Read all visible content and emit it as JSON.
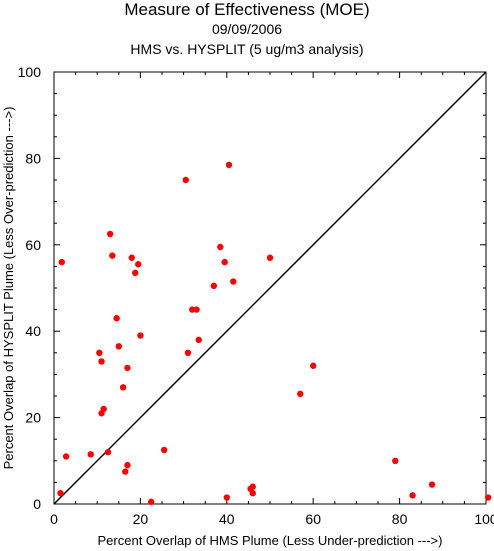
{
  "chart_data": {
    "type": "scatter",
    "title": "Measure of Effectiveness (MOE)",
    "subtitle_date": "09/09/2006",
    "subtitle": "HMS vs. HYSPLIT  (5 ug/m3 analysis)",
    "xlabel": "Percent Overlap of HMS Plume (Less Under-prediction --->)",
    "ylabel": "Percent Overlap of HYSPLIT Plume (Less Over-prediction --->)",
    "xlim": [
      0,
      100
    ],
    "ylim": [
      0,
      100
    ],
    "xticks": [
      0,
      20,
      40,
      60,
      80,
      100
    ],
    "yticks": [
      0,
      20,
      40,
      60,
      80,
      100
    ],
    "x_tick_labels": [
      "0",
      "20",
      "40",
      "60",
      "80",
      "100"
    ],
    "y_tick_labels": [
      "0",
      "20",
      "40",
      "60",
      "80",
      "100"
    ],
    "grid": false,
    "reference_line": "diagonal y = x",
    "point_color": "#ff0000",
    "x": [
      1.5,
      1.8,
      2.8,
      8.5,
      10.5,
      11,
      11,
      11.5,
      12.5,
      13,
      13.5,
      14.5,
      15,
      16,
      16.5,
      17,
      17,
      18,
      18.8,
      19.5,
      20,
      22.5,
      25.5,
      30.5,
      31,
      32,
      33,
      33.5,
      37,
      38.5,
      39.5,
      40,
      40.5,
      41.5,
      45.5,
      46,
      46,
      50,
      57,
      60,
      79,
      83,
      87.5,
      100.5
    ],
    "y": [
      2.5,
      56,
      11,
      11.5,
      35,
      21,
      33,
      22,
      12,
      62.5,
      57.5,
      43,
      36.5,
      27,
      7.5,
      31.5,
      9,
      57,
      53.5,
      55.5,
      39,
      0.5,
      12.5,
      75,
      35,
      45,
      45,
      38,
      50.5,
      59.5,
      56,
      1.5,
      78.5,
      51.5,
      3.5,
      2.5,
      4,
      57,
      25.5,
      32,
      10,
      2,
      4.5,
      1.5
    ]
  }
}
